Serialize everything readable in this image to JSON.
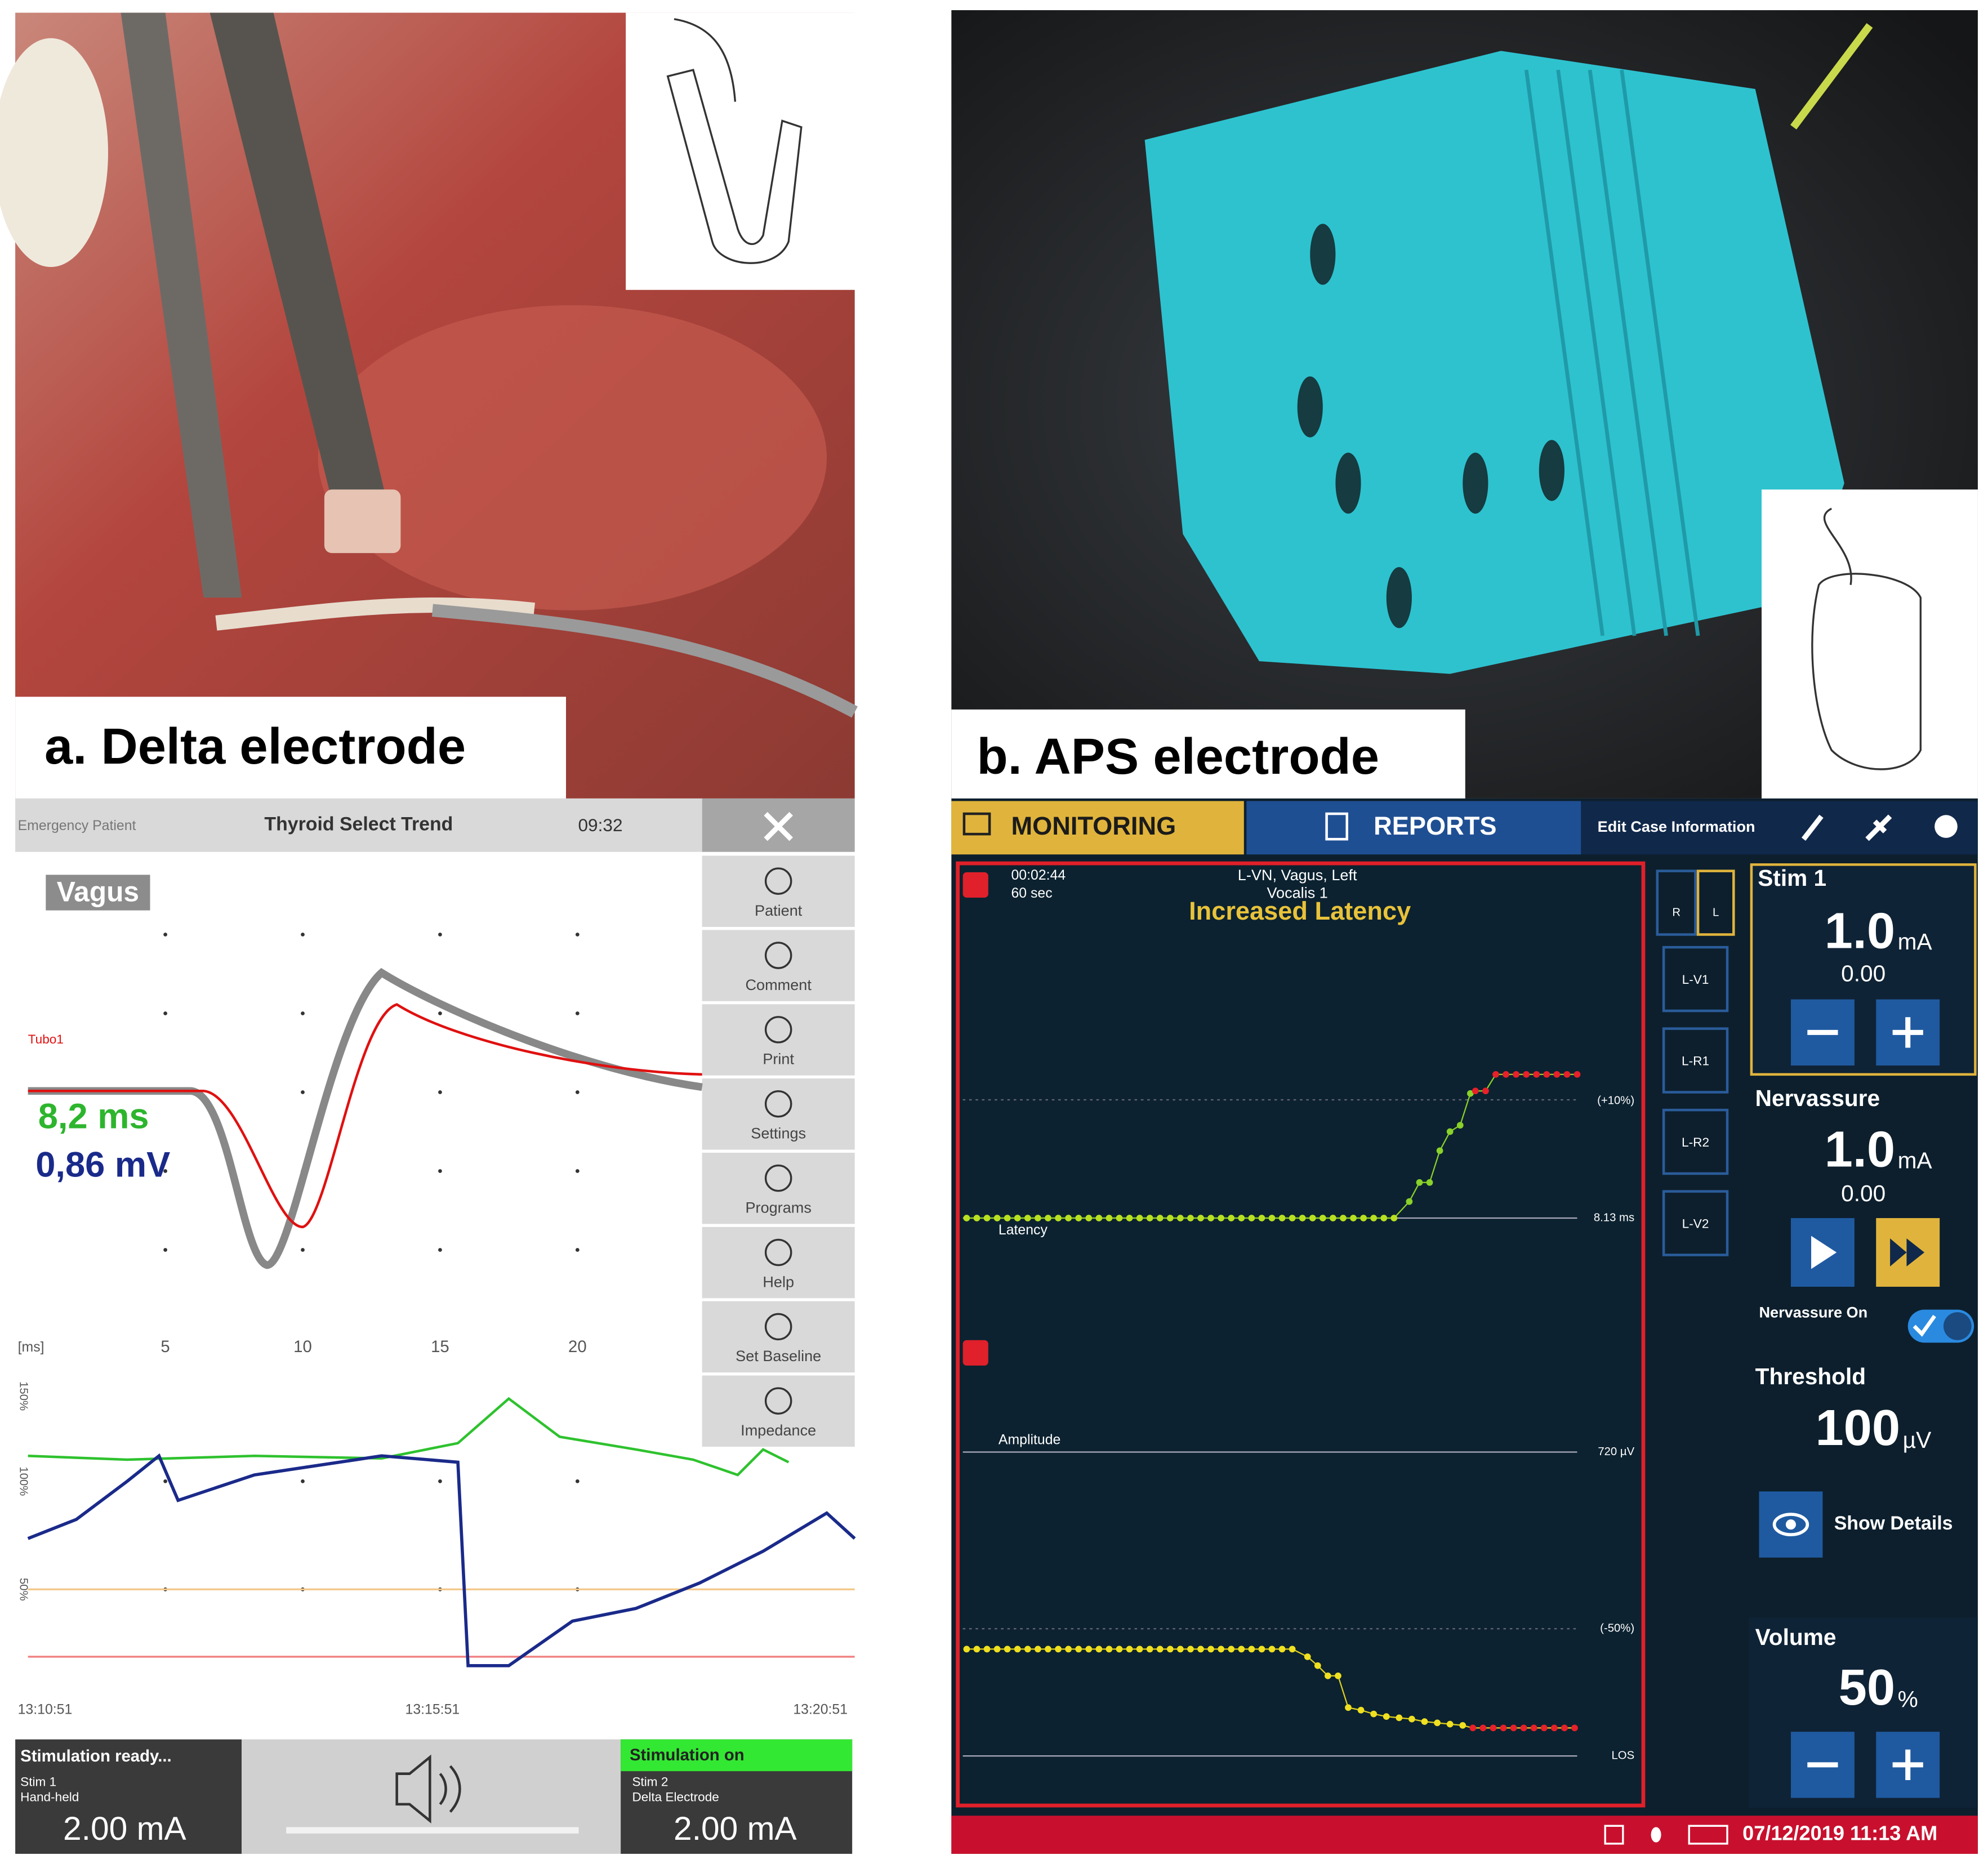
{
  "panel_a": {
    "label": "a. Delta electrode",
    "screen": {
      "header": {
        "patient": "Emergency Patient",
        "title": "Thyroid Select Trend",
        "time": "09:32"
      },
      "channel": "Vagus",
      "trace_label": "Tubo1",
      "latency": "8,2 ms",
      "amplitude": "0,86 mV",
      "x_axis": {
        "unit": "[ms]",
        "ticks": [
          "5",
          "10",
          "15",
          "20"
        ]
      },
      "trend_axis": [
        "150%",
        "100%",
        "50%"
      ],
      "trend_times": [
        "13:10:51",
        "13:15:51",
        "13:20:51"
      ],
      "sidebar": [
        "Patient",
        "Comment",
        "Print",
        "Settings",
        "Programs",
        "Help",
        "Set Baseline",
        "Impedance"
      ],
      "footer": {
        "left": {
          "status": "Stimulation ready...",
          "stim": "Stim 1",
          "probe": "Hand-held",
          "current": "2.00 mA"
        },
        "right": {
          "status": "Stimulation on",
          "stim": "Stim 2",
          "probe": "Delta Electrode",
          "current": "2.00 mA"
        }
      }
    }
  },
  "panel_b": {
    "label": "b. APS electrode",
    "screen": {
      "tabs": [
        "MONITORING",
        "REPORTS",
        "Edit Case Information"
      ],
      "chart": {
        "elapsed": "00:02:44",
        "window": "60 sec",
        "nerve": "L-VN, Vagus, Left",
        "muscle": "Vocalis 1",
        "alert": "Increased Latency",
        "latency_label": "Latency",
        "amplitude_label": "Amplitude",
        "plus10": "(+10%)",
        "latency_baseline": "8.13 ms",
        "amplitude_baseline": "720 µV",
        "minus50": "(-50%)",
        "los": "LOS"
      },
      "channels": [
        "L-V1",
        "L-R1",
        "L-R2",
        "L-V2"
      ],
      "sides": [
        "R",
        "L"
      ],
      "stim1": {
        "title": "Stim 1",
        "value": "1.0",
        "unit": "mA",
        "measured": "0.00"
      },
      "nervassure": {
        "title": "Nervassure",
        "value": "1.0",
        "unit": "mA",
        "measured": "0.00",
        "toggle_label": "Nervassure On"
      },
      "threshold": {
        "title": "Threshold",
        "value": "100",
        "unit": "µV",
        "details": "Show Details"
      },
      "volume": {
        "title": "Volume",
        "value": "50",
        "unit": "%"
      },
      "footer_datetime": "07/12/2019 11:13 AM"
    }
  }
}
